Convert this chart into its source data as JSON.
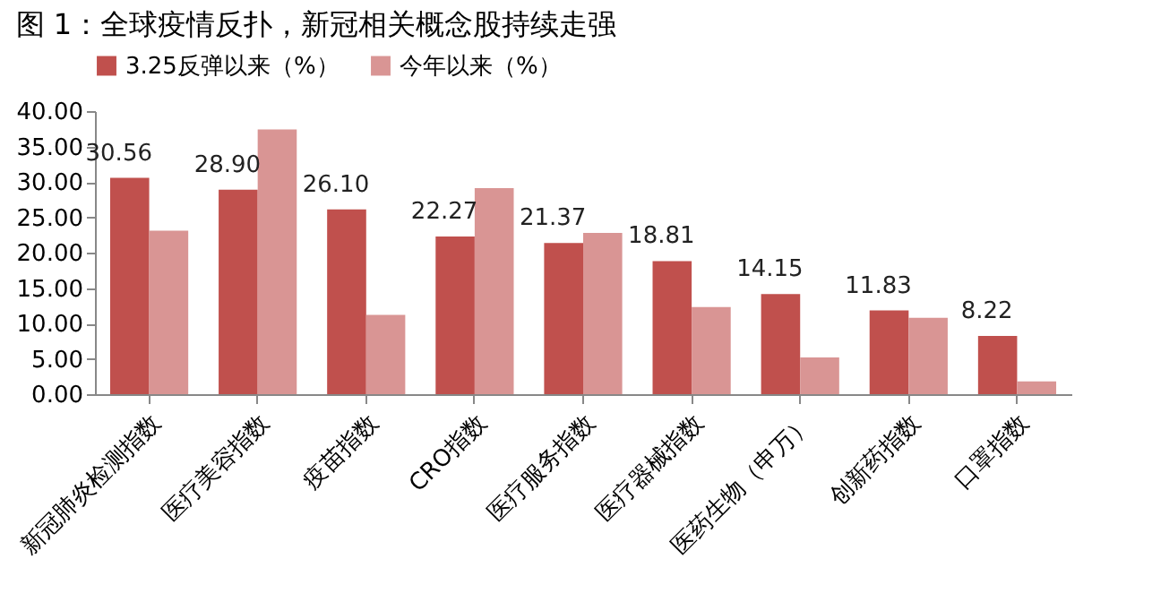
{
  "chart_data": {
    "type": "bar",
    "title": "图 1：全球疫情反扑，新冠相关概念股持续走强",
    "categories": [
      "新冠肺炎检测指数",
      "医疗美容指数",
      "疫苗指数",
      "CRO指数",
      "医疗服务指数",
      "医疗器械指数",
      "医药生物（申万）",
      "创新药指数",
      "口罩指数"
    ],
    "series": [
      {
        "name": "3.25反弹以来（%）",
        "color": "#c0504d",
        "values": [
          30.56,
          28.9,
          26.1,
          22.27,
          21.37,
          18.81,
          14.15,
          11.83,
          8.22
        ],
        "value_labels": [
          "30.56",
          "28.90",
          "26.10",
          "22.27",
          "21.37",
          "18.81",
          "14.15",
          "11.83",
          "8.22"
        ]
      },
      {
        "name": "今年以来（%）",
        "color": "#d99594",
        "values": [
          23.1,
          37.4,
          11.2,
          29.1,
          22.8,
          12.3,
          5.2,
          10.8,
          1.8
        ]
      }
    ],
    "ylim": [
      0,
      40
    ],
    "yticks": [
      {
        "value": 0,
        "label": "0.00"
      },
      {
        "value": 5,
        "label": "5.00"
      },
      {
        "value": 10,
        "label": "10.00"
      },
      {
        "value": 15,
        "label": "15.00"
      },
      {
        "value": 20,
        "label": "20.00"
      },
      {
        "value": 25,
        "label": "25.00"
      },
      {
        "value": 30,
        "label": "30.00"
      },
      {
        "value": 35,
        "label": "35.00"
      },
      {
        "value": 40,
        "label": "40.00"
      }
    ],
    "grid": false,
    "legend": "top"
  }
}
